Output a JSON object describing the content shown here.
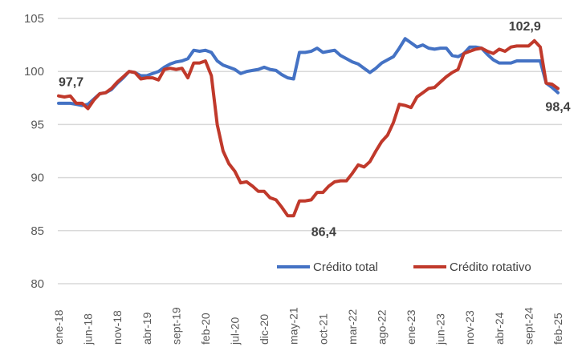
{
  "chart_data": {
    "type": "line",
    "title": "",
    "xlabel": "",
    "ylabel": "",
    "ylim": [
      80,
      105
    ],
    "yticks": [
      "80",
      "85",
      "90",
      "95",
      "100",
      "105"
    ],
    "ytick_values": [
      80,
      85,
      90,
      95,
      100,
      105
    ],
    "grid": true,
    "legend_position": "bottom-right",
    "x_start": "ene-18",
    "x_end": "feb-25",
    "n_points": 86,
    "xtick_labels": [
      "ene-18",
      "jun-18",
      "nov-18",
      "abr-19",
      "sept-19",
      "feb-20",
      "jul-20",
      "dic-20",
      "may-21",
      "oct-21",
      "mar-22",
      "ago-22",
      "ene-23",
      "jun-23",
      "nov-23",
      "abr-24",
      "sept-24",
      "feb-25"
    ],
    "xtick_every": 5,
    "series": [
      {
        "name": "Crédito total",
        "color": "#4472C4",
        "values": [
          97.0,
          97.0,
          97.0,
          96.9,
          96.8,
          96.9,
          97.4,
          97.9,
          98.0,
          98.3,
          98.9,
          99.4,
          100.0,
          99.9,
          99.6,
          99.6,
          99.8,
          100.0,
          100.4,
          100.7,
          100.9,
          101.0,
          101.2,
          102.0,
          101.9,
          102.0,
          101.8,
          101.0,
          100.6,
          100.4,
          100.2,
          99.8,
          100.0,
          100.1,
          100.2,
          100.4,
          100.2,
          100.1,
          99.7,
          99.4,
          99.3,
          101.8,
          101.8,
          101.9,
          102.2,
          101.8,
          101.9,
          102.0,
          101.5,
          101.2,
          100.9,
          100.7,
          100.3,
          99.9,
          100.3,
          100.8,
          101.1,
          101.4,
          102.2,
          103.1,
          102.7,
          102.3,
          102.5,
          102.2,
          102.1,
          102.2,
          102.2,
          101.5,
          101.4,
          101.7,
          102.3,
          102.3,
          102.2,
          101.6,
          101.1,
          100.8,
          100.8,
          100.8,
          101.0,
          101.0,
          101.0,
          101.0,
          101.0,
          98.9,
          98.5,
          98.0
        ]
      },
      {
        "name": "Crédito rotativo",
        "color": "#C0392B",
        "values": [
          97.7,
          97.6,
          97.7,
          97.0,
          97.0,
          96.5,
          97.3,
          97.9,
          98.0,
          98.4,
          99.0,
          99.5,
          100.0,
          99.9,
          99.3,
          99.4,
          99.4,
          99.2,
          100.2,
          100.3,
          100.2,
          100.3,
          99.4,
          100.8,
          100.8,
          101.0,
          99.6,
          95.0,
          92.5,
          91.3,
          90.6,
          89.5,
          89.6,
          89.2,
          88.7,
          88.7,
          88.1,
          87.9,
          87.2,
          86.4,
          86.4,
          87.8,
          87.8,
          87.9,
          88.6,
          88.6,
          89.2,
          89.6,
          89.7,
          89.7,
          90.4,
          91.2,
          91.0,
          91.5,
          92.5,
          93.4,
          94.0,
          95.2,
          96.9,
          96.8,
          96.6,
          97.6,
          98.0,
          98.4,
          98.5,
          99.0,
          99.5,
          99.9,
          100.2,
          101.7,
          101.9,
          102.1,
          102.2,
          101.9,
          101.7,
          102.1,
          101.9,
          102.3,
          102.4,
          102.4,
          102.4,
          102.9,
          102.3,
          98.9,
          98.8,
          98.4
        ]
      }
    ],
    "annotations": [
      {
        "text": "97,7",
        "series": 1,
        "index": 0
      },
      {
        "text": "86,4",
        "series": 1,
        "index": 40
      },
      {
        "text": "102,9",
        "series": 1,
        "index": 81
      },
      {
        "text": "98,4",
        "series": 1,
        "index": 85
      }
    ]
  }
}
